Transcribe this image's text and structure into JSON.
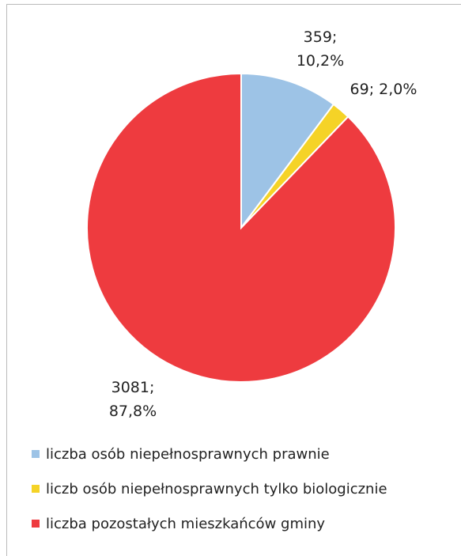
{
  "chart_data": {
    "type": "pie",
    "categories": [
      "liczba osób niepełnosprawnych prawnie",
      "liczb osób niepełnosprawnych tylko biologicznie",
      "liczba pozostałych mieszkańców gminy"
    ],
    "values": [
      359,
      69,
      3081
    ],
    "value_labels": [
      "359; 10,2%",
      "69; 2,0%",
      "3081; 87,8%"
    ],
    "colors": [
      "#9dc3e6",
      "#f5d327",
      "#ee3b3f"
    ],
    "legend": "bottom"
  }
}
